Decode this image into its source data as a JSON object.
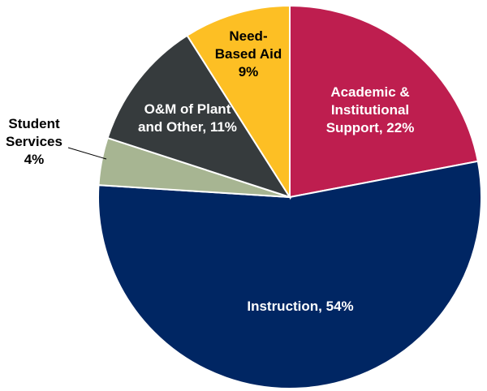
{
  "chart_data": {
    "type": "pie",
    "slices": [
      {
        "label_lines": [
          "Academic &",
          "Institutional",
          "Support, 22%"
        ],
        "value": 22,
        "color": "#BE1E4F",
        "label_color": "#FFFFFF"
      },
      {
        "label_lines": [
          "Instruction, 54%"
        ],
        "value": 54,
        "color": "#002663",
        "label_color": "#FFFFFF"
      },
      {
        "label_lines": [
          "Student",
          "Services",
          "4%"
        ],
        "value": 4,
        "color": "#A7B592",
        "label_color": "#000000"
      },
      {
        "label_lines": [
          "O&M of Plant",
          "and Other, 11%"
        ],
        "value": 11,
        "color": "#363B3D",
        "label_color": "#FFFFFF"
      },
      {
        "label_lines": [
          "Need-",
          "Based Aid",
          "9%"
        ],
        "value": 9,
        "color": "#FDBF24",
        "label_color": "#000000"
      }
    ]
  }
}
